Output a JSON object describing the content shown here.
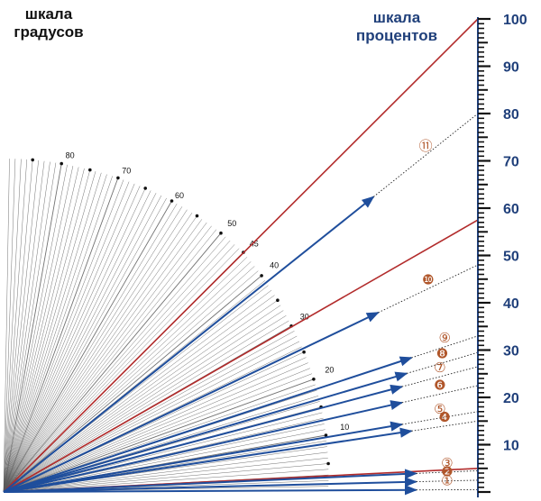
{
  "degree_scale": {
    "title_line1": "шкала",
    "title_line2": "градусов",
    "labels": [
      {
        "deg": 80,
        "text": "80"
      },
      {
        "deg": 70,
        "text": "70"
      },
      {
        "deg": 60,
        "text": "60"
      },
      {
        "deg": 50,
        "text": "50"
      },
      {
        "deg": 45,
        "text": "45"
      },
      {
        "deg": 40,
        "text": "40"
      },
      {
        "deg": 30,
        "text": "30"
      },
      {
        "deg": 20,
        "text": "20"
      },
      {
        "deg": 10,
        "text": "10"
      }
    ],
    "color": "#111111"
  },
  "percent_scale": {
    "title_line1": "шкала",
    "title_line2": "процентов",
    "ticks": [
      "10",
      "20",
      "30",
      "40",
      "50",
      "60",
      "70",
      "80",
      "90",
      "100"
    ],
    "color": "#1f3f7a"
  },
  "red_lines": [
    {
      "percent": 100
    },
    {
      "percent": 57.5
    },
    {
      "percent": 5
    }
  ],
  "slope_arrows": [
    {
      "label": "⑪",
      "percent": 80,
      "marker_style": "outline"
    },
    {
      "label": "❿",
      "percent": 48,
      "marker_style": "filled"
    },
    {
      "label": "⑨",
      "percent": 33,
      "marker_style": "outline"
    },
    {
      "label": "❽",
      "percent": 29.5,
      "marker_style": "filled"
    },
    {
      "label": "⑦",
      "percent": 26.5,
      "marker_style": "outline"
    },
    {
      "label": "❻",
      "percent": 22.5,
      "marker_style": "filled"
    },
    {
      "label": "⑤",
      "percent": 17,
      "marker_style": "outline"
    },
    {
      "label": "❹",
      "percent": 15,
      "marker_style": "filled"
    },
    {
      "label": "③",
      "percent": 4.5,
      "marker_style": "outline"
    },
    {
      "label": "❷",
      "percent": 2.5,
      "marker_style": "filled"
    },
    {
      "label": "①",
      "percent": 0.5,
      "marker_style": "outline"
    }
  ],
  "colors": {
    "arrow": "#1f4e9c",
    "red_line": "#b22b2b",
    "marker_outline": "#b0562a",
    "marker_fill": "#b0562a",
    "fan_lines": "#5a5a5a"
  }
}
